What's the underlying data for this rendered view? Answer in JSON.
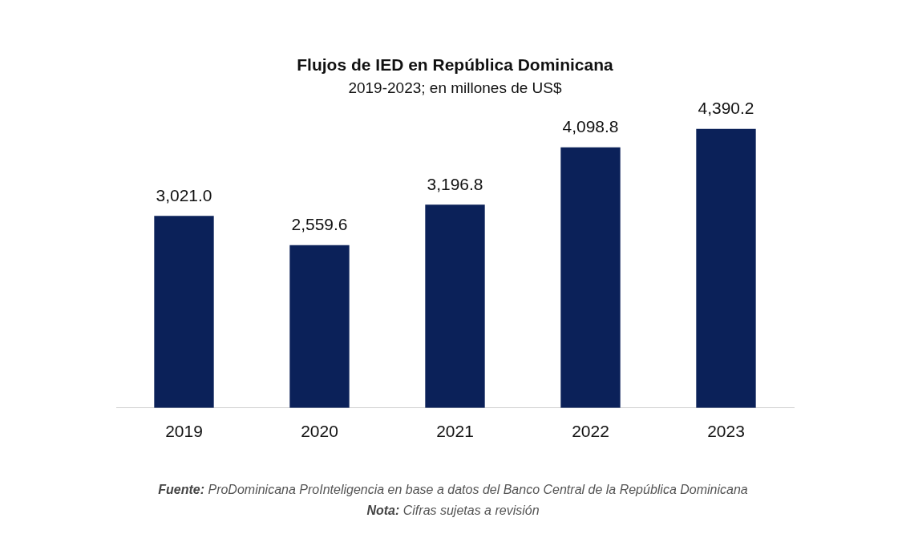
{
  "chart_data": {
    "type": "bar",
    "title": "Flujos de IED en República Dominicana",
    "subtitle": "2019-2023; en millones de US$",
    "categories": [
      "2019",
      "2020",
      "2021",
      "2022",
      "2023"
    ],
    "values": [
      3021.0,
      2559.6,
      3196.8,
      4098.8,
      4390.2
    ],
    "value_labels": [
      "3,021.0",
      "2,559.6",
      "3,196.8",
      "4,098.8",
      "4,390.2"
    ],
    "color": "#0b2159",
    "grid": false,
    "legend": false,
    "annotations": [
      "Fuente: ProDominicana ProInteligencia en base a datos del Banco Central de la República Dominicana",
      "Nota: Cifras sujetas a revisión"
    ]
  }
}
